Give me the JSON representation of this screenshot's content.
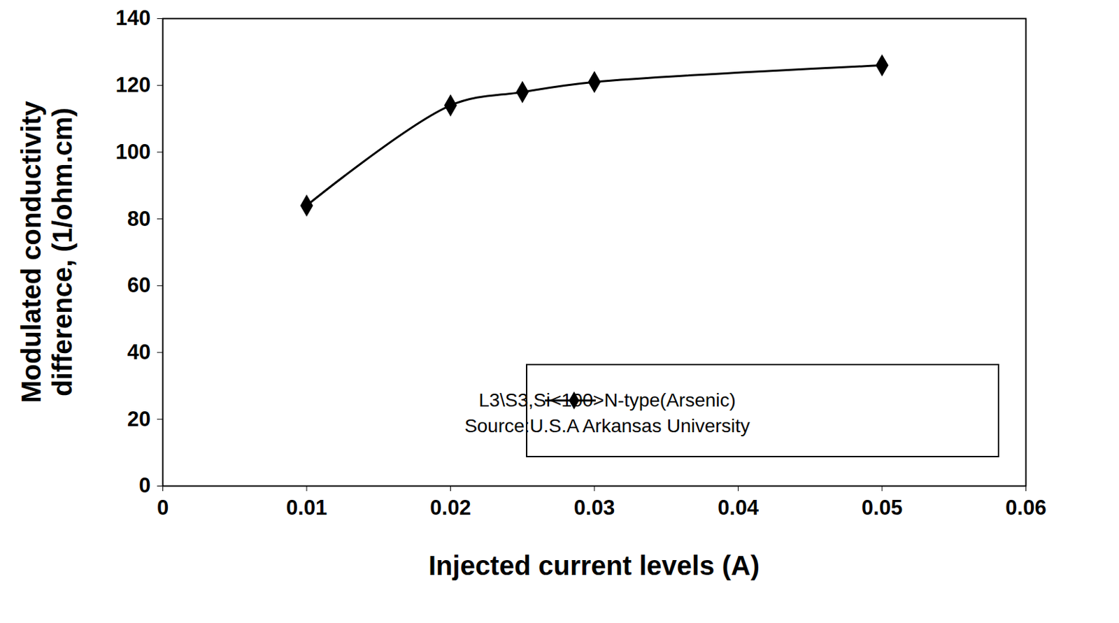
{
  "chart_data": {
    "type": "line",
    "x_label": "Injected current levels (A)",
    "y_label": "Modulated conductivity\ndifference, (1/ohm.cm)",
    "x": [
      0.01,
      0.02,
      0.025,
      0.03,
      0.05
    ],
    "series": [
      {
        "name": "L3\\S3,Si<100>N-type(Arsenic)",
        "color": "#000000",
        "marker": "diamond",
        "line_style": "solid",
        "values": [
          84,
          114,
          118,
          121,
          126
        ]
      }
    ],
    "annotations": [
      "Source:U.S.A Arkansas University"
    ],
    "xlim": [
      0,
      0.06
    ],
    "xticks": [
      0,
      0.01,
      0.02,
      0.03,
      0.04,
      0.05,
      0.06
    ],
    "ylim": [
      0,
      140
    ],
    "yticks": [
      0,
      20,
      40,
      60,
      80,
      100,
      120,
      140
    ],
    "grid": false,
    "legend": "lower right"
  }
}
